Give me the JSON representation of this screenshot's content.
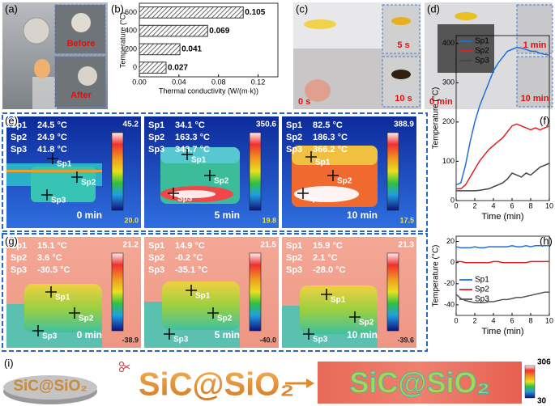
{
  "panels": {
    "a": {
      "label": "(a)",
      "before": "Before",
      "after": "After"
    },
    "b": {
      "label": "(b)"
    },
    "c": {
      "label": "(c)",
      "times": [
        "5 s",
        "10 s",
        "0 s"
      ]
    },
    "d": {
      "label": "(d)",
      "times": [
        "1 min",
        "10 min",
        "0 min"
      ]
    },
    "e": {
      "label": "(e)",
      "images": [
        {
          "readouts": [
            {
              "name": "Sp1",
              "reading": "24.5 °C"
            },
            {
              "name": "Sp2",
              "reading": "24.9 °C"
            },
            {
              "name": "Sp3",
              "reading": "41.8 °C"
            }
          ],
          "max": "45.2",
          "min": "20.0",
          "time": "0 min",
          "markers": [
            "Sp1",
            "Sp2",
            "Sp3"
          ]
        },
        {
          "readouts": [
            {
              "name": "Sp1",
              "reading": "34.1 °C"
            },
            {
              "name": "Sp2",
              "reading": "163.3 °C"
            },
            {
              "name": "Sp3",
              "reading": "343.7 °C"
            }
          ],
          "max": "350.6",
          "min": "19.8",
          "time": "5 min",
          "markers": [
            "Sp1",
            "Sp2",
            "Sp3"
          ]
        },
        {
          "readouts": [
            {
              "name": "Sp1",
              "reading": "82.5 °C"
            },
            {
              "name": "Sp2",
              "reading": "186.3 °C"
            },
            {
              "name": "Sp3",
              "reading": "366.2 °C"
            }
          ],
          "max": "388.9",
          "min": "17.5",
          "time": "10 min",
          "markers": [
            "Sp1",
            "Sp2",
            "Sp3"
          ]
        }
      ]
    },
    "f": {
      "label": "(f)"
    },
    "g": {
      "label": "(g)",
      "images": [
        {
          "readouts": [
            {
              "name": "Sp1",
              "reading": "15.1 °C"
            },
            {
              "name": "Sp2",
              "reading": "3.6 °C"
            },
            {
              "name": "Sp3",
              "reading": "-30.5 °C"
            }
          ],
          "max": "21.2",
          "min": "-38.9",
          "time": "0 min",
          "markers": [
            "Sp1",
            "Sp2",
            "Sp3"
          ]
        },
        {
          "readouts": [
            {
              "name": "Sp1",
              "reading": "14.9 °C"
            },
            {
              "name": "Sp2",
              "reading": "-0.2 °C"
            },
            {
              "name": "Sp3",
              "reading": "-35.1 °C"
            }
          ],
          "max": "21.5",
          "min": "-40.0",
          "time": "5 min",
          "markers": [
            "Sp1",
            "Sp2",
            "Sp3"
          ]
        },
        {
          "readouts": [
            {
              "name": "Sp1",
              "reading": "15.9 °C"
            },
            {
              "name": "Sp2",
              "reading": "2.1 °C"
            },
            {
              "name": "Sp3",
              "reading": "-28.0 °C"
            }
          ],
          "max": "21.3",
          "min": "-39.6",
          "time": "10 min",
          "markers": [
            "Sp1",
            "Sp2",
            "Sp3"
          ]
        }
      ]
    },
    "h": {
      "label": "(h)"
    },
    "i": {
      "label": "(i)",
      "disk_text": "SiC@SiO₂",
      "big_text": "SiC@SiO₂",
      "thermal_text": "SiC@SiO₂",
      "max": "306",
      "min": "30"
    }
  },
  "chart_data": [
    {
      "type": "bar",
      "orientation": "horizontal",
      "categories": [
        "0",
        "200",
        "400",
        "600"
      ],
      "values": [
        0.027,
        0.041,
        0.069,
        0.105
      ],
      "xlabel": "Thermal conductivity (W/(m·k))",
      "ylabel": "Temperature (°C)",
      "xlim": [
        0,
        0.14
      ],
      "xticks": [
        {
          "value": 0,
          "label": "0.00"
        },
        0.04,
        0.08,
        0.12
      ],
      "color": "#333333"
    },
    {
      "type": "line",
      "xlabel": "Time (min)",
      "ylabel": "Temperature (°C)",
      "x": [
        0,
        0.5,
        1,
        1.5,
        2,
        2.5,
        3,
        3.5,
        4,
        4.5,
        5,
        5.5,
        6,
        6.5,
        7,
        7.5,
        8,
        8.5,
        9,
        9.5,
        10
      ],
      "xlim": [
        0,
        10
      ],
      "xticks": [
        0,
        2,
        4,
        6,
        8,
        10
      ],
      "ylim": [
        0,
        420
      ],
      "yticks": [
        0,
        100,
        200,
        300,
        400
      ],
      "legend": "upper left",
      "series": [
        {
          "name": "Sp1",
          "color": "#1f6fe0",
          "values": [
            40,
            45,
            90,
            150,
            200,
            240,
            270,
            300,
            330,
            350,
            365,
            380,
            385,
            390,
            388,
            385,
            380,
            380,
            375,
            372,
            370
          ]
        },
        {
          "name": "Sp2",
          "color": "#e02020",
          "values": [
            30,
            30,
            40,
            60,
            80,
            100,
            115,
            130,
            140,
            150,
            160,
            175,
            190,
            195,
            190,
            185,
            180,
            185,
            180,
            185,
            190
          ]
        },
        {
          "name": "Sp3",
          "color": "#444444",
          "values": [
            25,
            25,
            25,
            25,
            25,
            26,
            28,
            30,
            35,
            40,
            45,
            55,
            70,
            65,
            60,
            70,
            65,
            75,
            85,
            90,
            95
          ]
        }
      ]
    },
    {
      "type": "line",
      "xlabel": "Time (min)",
      "ylabel": "Temperature (°C)",
      "x": [
        0,
        0.5,
        1,
        1.5,
        2,
        2.5,
        3,
        3.5,
        4,
        4.5,
        5,
        5.5,
        6,
        6.5,
        7,
        7.5,
        8,
        8.5,
        9,
        9.5,
        10
      ],
      "xlim": [
        0,
        10
      ],
      "xticks": [
        0,
        2,
        4,
        6,
        8,
        10
      ],
      "ylim": [
        -50,
        25
      ],
      "yticks": [
        -40,
        -20,
        0,
        20
      ],
      "legend": "lower left",
      "series": [
        {
          "name": "Sp1",
          "color": "#1f6fe0",
          "values": [
            15,
            14,
            14,
            14,
            15,
            14,
            14,
            15,
            15,
            15,
            15,
            15,
            16,
            15,
            15,
            16,
            15,
            16,
            16,
            16,
            16
          ]
        },
        {
          "name": "Sp2",
          "color": "#e02020",
          "values": [
            1,
            1,
            0,
            0,
            0,
            0,
            0,
            0,
            1,
            1,
            0,
            0,
            0,
            0,
            0,
            0,
            1,
            1,
            1,
            1,
            1
          ]
        },
        {
          "name": "Sp3",
          "color": "#555555",
          "values": [
            -30,
            -34,
            -36,
            -37,
            -38,
            -38,
            -38,
            -37,
            -37,
            -36,
            -35,
            -35,
            -34,
            -33,
            -33,
            -32,
            -31,
            -30,
            -29,
            -28,
            -28
          ]
        }
      ]
    }
  ]
}
